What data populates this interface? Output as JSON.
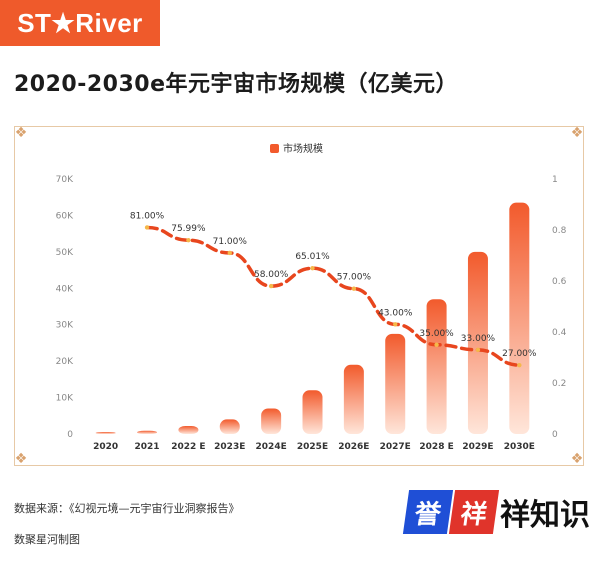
{
  "logo_text": "ST★River",
  "title": "2020-2030e年元宇宙市场规模（亿美元）",
  "source": "数据来源：《幻视元境—元宇宙行业洞察报告》",
  "credit": "数聚星河制图",
  "watermark": {
    "box1": "誉",
    "box2": "祥",
    "rest": "祥知识"
  },
  "colors": {
    "brand": "#ef5a2b",
    "bar_top": "#f25a2c",
    "bar_bottom": "#ffe6da",
    "line": "#e8461e",
    "marker": "#f5b84a",
    "frame": "#e7c9a6"
  },
  "chart_data": {
    "type": "bar",
    "legend": "市场规模",
    "legend_position": "top-center",
    "categories": [
      "2020",
      "2021",
      "2022 E",
      "2023E",
      "2024E",
      "2025E",
      "2026E",
      "2027E",
      "2028 E",
      "2029E",
      "2030E"
    ],
    "series": [
      {
        "name": "市场规模",
        "type": "bar",
        "axis": "left",
        "values": [
          500,
          900,
          2200,
          4000,
          7000,
          12000,
          19000,
          27500,
          37000,
          50000,
          63500
        ]
      },
      {
        "type": "line",
        "axis": "right",
        "style": "dashed",
        "values": [
          null,
          0.81,
          0.7599,
          0.71,
          0.58,
          0.6501,
          0.57,
          0.43,
          0.35,
          0.33,
          0.27
        ],
        "labels": [
          "",
          "81.00%",
          "75.99%",
          "71.00%",
          "58.00%",
          "65.01%",
          "57.00%",
          "43.00%",
          "35.00%",
          "33.00%",
          "27.00%"
        ]
      }
    ],
    "y_left": {
      "ylim": [
        0,
        70000
      ],
      "ticks": [
        "0",
        "10K",
        "20K",
        "30K",
        "40K",
        "50K",
        "60K",
        "70K"
      ]
    },
    "y_right": {
      "ylim": [
        0,
        1
      ],
      "ticks": [
        "0",
        "0.2",
        "0.4",
        "0.6",
        "0.8",
        "1"
      ]
    },
    "grid": false
  }
}
